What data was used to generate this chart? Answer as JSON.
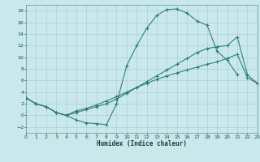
{
  "background_color": "#c8e8ec",
  "grid_color": "#a8c8d0",
  "line_color": "#2a7a6f",
  "xlabel": "Humidex (Indice chaleur)",
  "xlim": [
    0,
    23
  ],
  "ylim": [
    -3,
    19
  ],
  "xticks": [
    0,
    1,
    2,
    3,
    4,
    5,
    6,
    7,
    8,
    9,
    10,
    11,
    12,
    13,
    14,
    15,
    16,
    17,
    18,
    19,
    20,
    21,
    22,
    23
  ],
  "yticks": [
    -2,
    0,
    2,
    4,
    6,
    8,
    10,
    12,
    14,
    16,
    18
  ],
  "curve1_x": [
    0,
    1,
    2,
    3,
    4,
    5,
    6,
    7,
    8,
    9,
    10,
    11,
    12,
    13,
    14,
    15,
    16,
    17,
    18,
    19,
    20,
    21
  ],
  "curve1_y": [
    3.0,
    2.0,
    1.5,
    0.5,
    0.0,
    -0.8,
    -1.3,
    -1.4,
    -1.6,
    2.0,
    8.5,
    12.0,
    15.0,
    17.2,
    18.2,
    18.3,
    17.6,
    16.2,
    15.5,
    11.0,
    9.5,
    7.0
  ],
  "curve2_x": [
    0,
    1,
    2,
    3,
    4,
    5,
    6,
    7,
    8,
    9,
    10,
    11,
    12,
    13,
    14,
    15,
    16,
    17,
    18,
    19,
    20,
    21,
    22,
    23
  ],
  "curve2_y": [
    3.0,
    2.0,
    1.5,
    0.5,
    0.0,
    0.5,
    1.0,
    1.5,
    2.0,
    2.8,
    3.8,
    4.8,
    5.8,
    6.8,
    7.8,
    8.8,
    9.8,
    10.8,
    11.5,
    11.8,
    12.0,
    13.5,
    7.0,
    5.5
  ],
  "curve3_x": [
    0,
    1,
    2,
    3,
    4,
    5,
    6,
    7,
    8,
    9,
    10,
    11,
    12,
    13,
    14,
    15,
    16,
    17,
    18,
    19,
    20,
    21,
    22,
    23
  ],
  "curve3_y": [
    3.0,
    2.0,
    1.5,
    0.5,
    0.0,
    0.8,
    1.2,
    1.8,
    2.5,
    3.2,
    4.0,
    4.8,
    5.5,
    6.2,
    6.8,
    7.3,
    7.8,
    8.3,
    8.8,
    9.2,
    9.8,
    10.5,
    6.5,
    5.5
  ]
}
